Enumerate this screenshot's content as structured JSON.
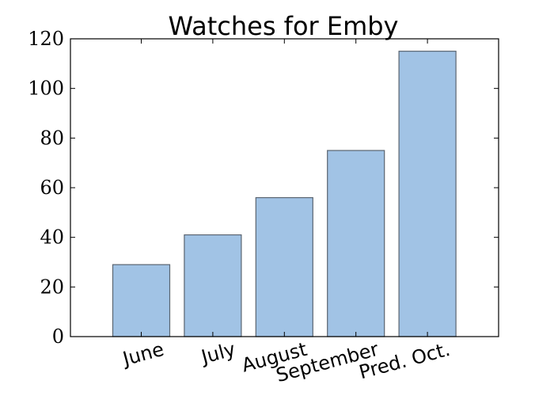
{
  "chart_data": {
    "type": "bar",
    "title": "Watches for Emby",
    "categories": [
      "June",
      "July",
      "August",
      "September",
      "Pred. Oct."
    ],
    "values": [
      29,
      41,
      56,
      75,
      115
    ],
    "xlabel": "",
    "ylabel": "",
    "ylim": [
      0,
      120
    ],
    "yticks": [
      "0",
      "20",
      "40",
      "60",
      "80",
      "100",
      "120"
    ],
    "grid": false,
    "bar_color": "#a1c3e5",
    "bar_edge_color": "#5a6470"
  }
}
